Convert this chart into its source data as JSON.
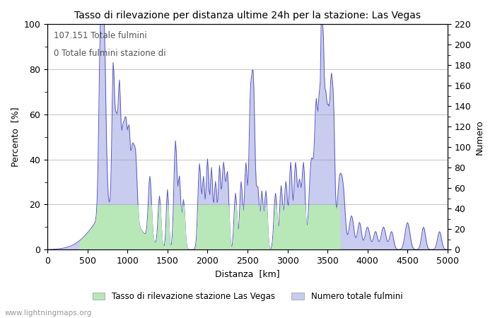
{
  "title": "Tasso di rilevazione per distanza ultime 24h per la stazione: Las Vegas",
  "xlabel": "Distanza  [km]",
  "ylabel_left": "Percento  [%]",
  "ylabel_right": "Numero",
  "annotation_line1": "107.151 Totale fulmini",
  "annotation_line2": "0 Totale fulmini stazione di",
  "xlim": [
    0,
    5000
  ],
  "ylim_left": [
    0,
    100
  ],
  "ylim_right": [
    0,
    220
  ],
  "xticks": [
    0,
    500,
    1000,
    1500,
    2000,
    2500,
    3000,
    3500,
    4000,
    4500,
    5000
  ],
  "yticks_left": [
    0,
    20,
    40,
    60,
    80,
    100
  ],
  "yticks_right": [
    0,
    20,
    40,
    60,
    80,
    100,
    120,
    140,
    160,
    180,
    200,
    220
  ],
  "legend_label1": "Tasso di rilevazione stazione Las Vegas",
  "legend_label2": "Numero totale fulmini",
  "watermark": "www.lightningmaps.org",
  "fill_color_green": "#b8e8b8",
  "fill_color_blue": "#c8ccee",
  "line_color": "#5858c8",
  "background_color": "#ffffff",
  "grid_color": "#999999",
  "tasso_baseline": 20.0
}
